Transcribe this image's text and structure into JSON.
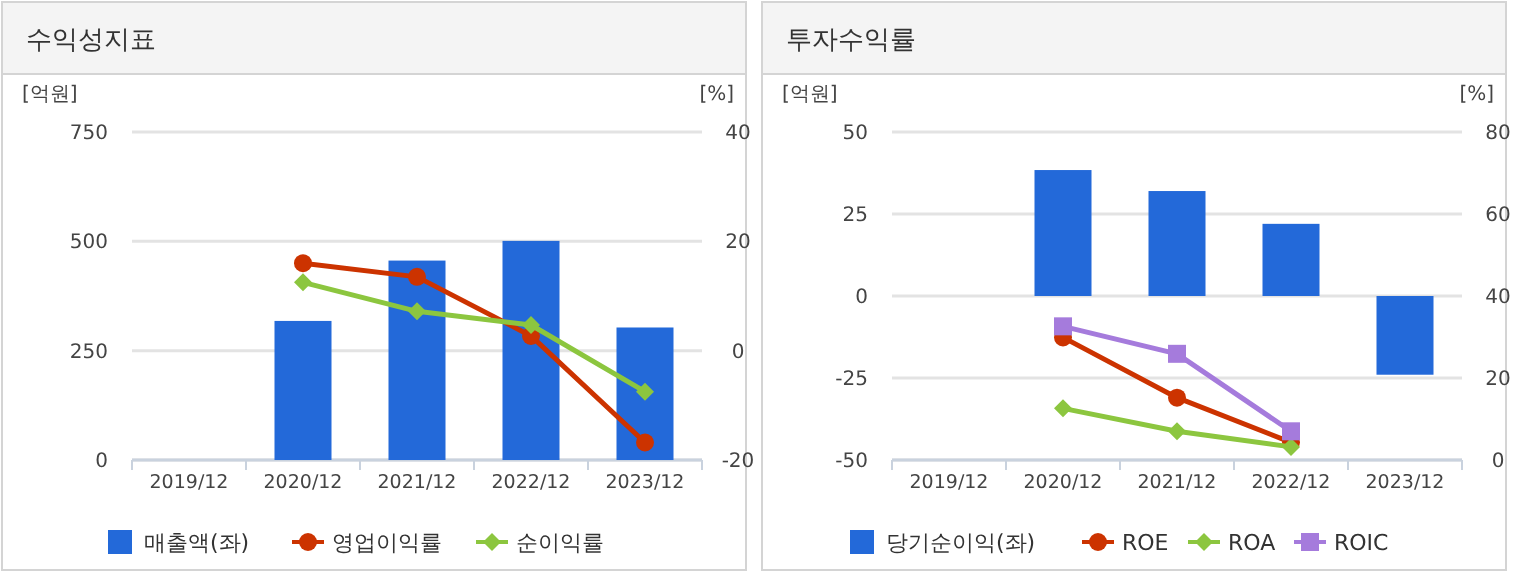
{
  "chart_data": [
    {
      "type": "bar",
      "title": "수익성지표",
      "ylabel": "[억원]",
      "y2label": "[%]",
      "categories": [
        "2019/12",
        "2020/12",
        "2021/12",
        "2022/12",
        "2023/12"
      ],
      "ylim": [
        0,
        750
      ],
      "yticks": [
        0,
        250,
        500,
        750
      ],
      "y2lim": [
        -20,
        40
      ],
      "y2ticks": [
        -20,
        0,
        20,
        40
      ],
      "grid": "y",
      "legend": "bottom",
      "series": [
        {
          "name": "매출액(좌)",
          "color": "#2369d9",
          "values": [
            null,
            318,
            456,
            501,
            303
          ]
        },
        {
          "name": "영업이익률",
          "type": "line",
          "axis": "y2",
          "marker": "circle",
          "color": "#cc3300",
          "values": [
            null,
            16,
            13.5,
            2.7,
            -16.8
          ]
        },
        {
          "name": "순이익률",
          "type": "line",
          "axis": "y2",
          "marker": "diamond",
          "color": "#8cc63f",
          "values": [
            null,
            12.5,
            7.2,
            4.7,
            -7.5
          ]
        }
      ]
    },
    {
      "type": "bar",
      "title": "투자수익률",
      "ylabel": "[억원]",
      "y2label": "[%]",
      "categories": [
        "2019/12",
        "2020/12",
        "2021/12",
        "2022/12",
        "2023/12"
      ],
      "ylim": [
        -50,
        50
      ],
      "yticks": [
        -50,
        -25,
        0,
        25,
        50
      ],
      "y2lim": [
        0,
        80
      ],
      "y2ticks": [
        0,
        20,
        40,
        60,
        80
      ],
      "grid": "y",
      "legend": "bottom",
      "series": [
        {
          "name": "당기순이익(좌)",
          "color": "#2369d9",
          "values": [
            null,
            38.4,
            32,
            22,
            -24
          ]
        },
        {
          "name": "ROE",
          "type": "line",
          "axis": "y2",
          "marker": "circle",
          "color": "#cc3300",
          "values": [
            null,
            29.9,
            15.2,
            4.3,
            null
          ]
        },
        {
          "name": "ROA",
          "type": "line",
          "axis": "y2",
          "marker": "diamond",
          "color": "#8cc63f",
          "values": [
            null,
            12.6,
            7,
            3.2,
            null
          ]
        },
        {
          "name": "ROIC",
          "type": "line",
          "axis": "y2",
          "marker": "square",
          "color": "#a57bdc",
          "values": [
            null,
            32.6,
            25.9,
            7,
            null
          ]
        }
      ]
    }
  ]
}
